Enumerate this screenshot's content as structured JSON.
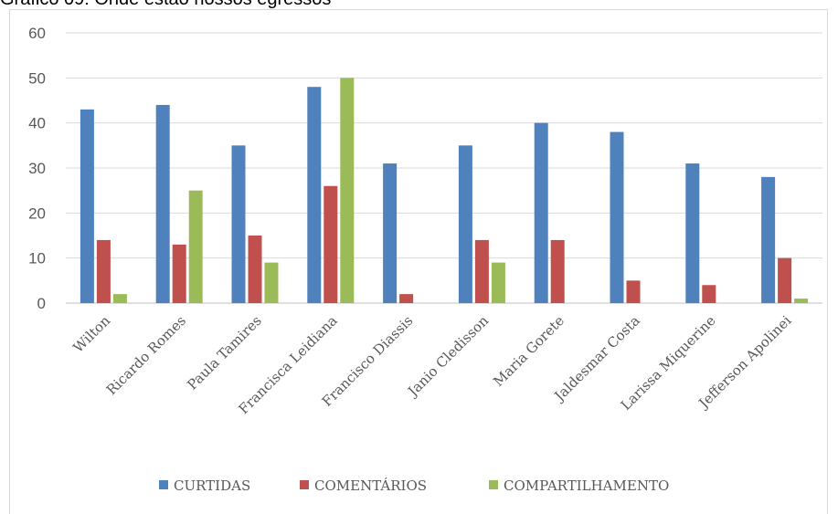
{
  "chart_data": {
    "type": "bar",
    "title": "Gráfico 09: Onde estão nossos egressos",
    "categories": [
      "Wilton",
      "Ricardo Romes",
      "Paula Tamires",
      "Francisca Leidiana",
      "Francisco Diassis",
      "Janio Cledisson",
      "Maria Gorete",
      "Jaldesmar Costa",
      "Larissa Miquerine",
      "Jefferson Apolinei"
    ],
    "series": [
      {
        "name": "CURTIDAS",
        "color": "#4f81bd",
        "values": [
          43,
          44,
          35,
          48,
          31,
          35,
          40,
          38,
          31,
          28
        ]
      },
      {
        "name": "COMENTÁRIOS",
        "color": "#c0504d",
        "values": [
          14,
          13,
          15,
          26,
          2,
          14,
          14,
          5,
          4,
          10
        ]
      },
      {
        "name": "COMPARTILHAMENTO",
        "color": "#9bbb59",
        "values": [
          2,
          25,
          9,
          50,
          0,
          9,
          0,
          0,
          0,
          1
        ]
      }
    ],
    "yticks": [
      "0",
      "10",
      "20",
      "30",
      "40",
      "50",
      "60"
    ],
    "ylim": [
      0,
      60
    ],
    "grid": true,
    "legend": "bottom"
  }
}
